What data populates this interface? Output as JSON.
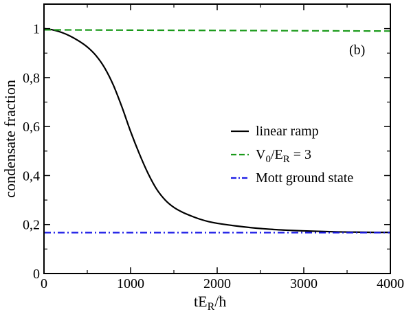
{
  "chart_data": {
    "type": "line",
    "panel_label": "(b)",
    "xlabel": {
      "main": "tE",
      "sub": "R",
      "tail": "/ħ"
    },
    "ylabel": "condensate fraction",
    "xlim": [
      0,
      4000
    ],
    "ylim": [
      0,
      1.1
    ],
    "x_ticks": [
      0,
      1000,
      2000,
      3000,
      4000
    ],
    "x_tick_labels": [
      "0",
      "1000",
      "2000",
      "3000",
      "4000"
    ],
    "y_ticks": [
      0,
      0.2,
      0.4,
      0.6,
      0.8,
      1.0
    ],
    "y_tick_labels": [
      "0",
      "0,2",
      "0,4",
      "0,6",
      "0,8",
      "1"
    ],
    "grid": false,
    "legend_position": "center-right",
    "series": [
      {
        "name": "linear ramp",
        "legend": {
          "parts": [
            {
              "t": "linear ramp"
            }
          ]
        },
        "color": "#000000",
        "style": "solid",
        "x": [
          0,
          100,
          200,
          300,
          400,
          500,
          600,
          700,
          800,
          900,
          1000,
          1100,
          1200,
          1300,
          1400,
          1500,
          1600,
          1700,
          1800,
          1900,
          2000,
          2200,
          2400,
          2600,
          2800,
          3000,
          3200,
          3400,
          3600,
          3800,
          4000
        ],
        "y": [
          1.0,
          0.995,
          0.985,
          0.97,
          0.95,
          0.925,
          0.89,
          0.84,
          0.77,
          0.68,
          0.58,
          0.49,
          0.41,
          0.345,
          0.3,
          0.27,
          0.25,
          0.235,
          0.222,
          0.212,
          0.205,
          0.195,
          0.187,
          0.181,
          0.177,
          0.174,
          0.172,
          0.17,
          0.169,
          0.168,
          0.168
        ]
      },
      {
        "name": "V0/ER = 3",
        "legend": {
          "parts": [
            {
              "t": "V"
            },
            {
              "t": "0",
              "sub": true
            },
            {
              "t": "/E"
            },
            {
              "t": "R",
              "sub": true
            },
            {
              "t": " = 3"
            }
          ]
        },
        "color": "#1a9a1a",
        "style": "dashed",
        "x": [
          0,
          4000
        ],
        "y": [
          0.995,
          0.99
        ]
      },
      {
        "name": "Mott ground state",
        "legend": {
          "parts": [
            {
              "t": "Mott ground state"
            }
          ]
        },
        "color": "#1a1ae6",
        "style": "dashdot",
        "x": [
          0,
          4000
        ],
        "y": [
          0.167,
          0.167
        ]
      }
    ]
  }
}
